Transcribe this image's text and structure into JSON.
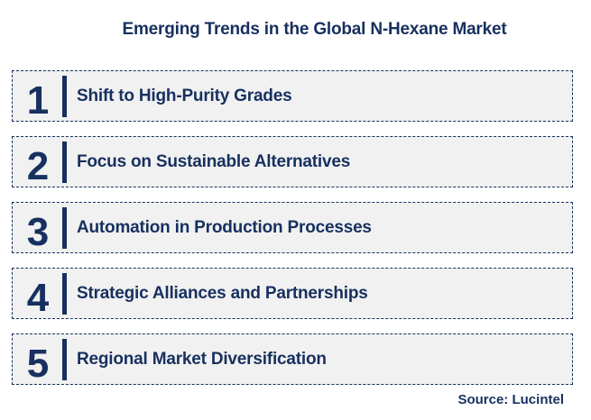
{
  "title": "Emerging Trends in the Global N-Hexane Market",
  "trends": [
    {
      "number": "1",
      "label": "Shift to High-Purity Grades"
    },
    {
      "number": "2",
      "label": "Focus on Sustainable Alternatives"
    },
    {
      "number": "3",
      "label": "Automation in Production Processes"
    },
    {
      "number": "4",
      "label": "Strategic Alliances and Partnerships"
    },
    {
      "number": "5",
      "label": "Regional Market Diversification"
    }
  ],
  "source": "Source: Lucintel",
  "colors": {
    "navy": "#17305F",
    "row_background": "#F1F1F1",
    "page_background": "#FFFFFF"
  }
}
